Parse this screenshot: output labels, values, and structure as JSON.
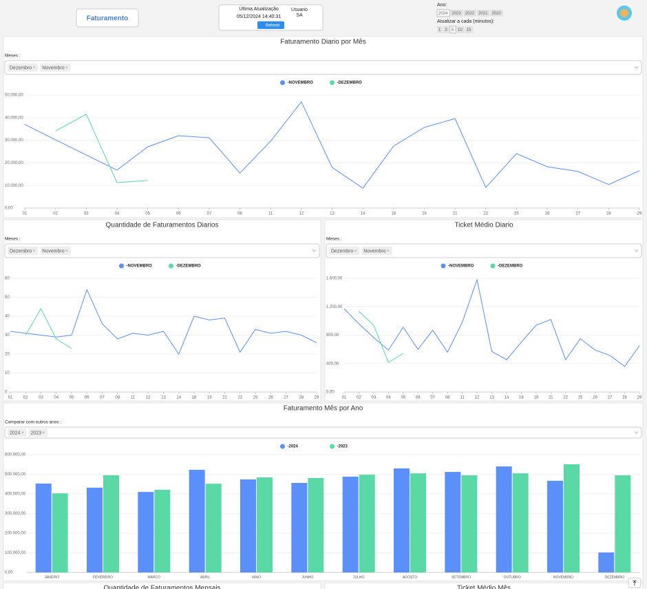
{
  "header": {
    "app_button": "Faturamento",
    "last_update_label": "Última Atualização",
    "last_update": "05/12/2024 14:40:31",
    "user_label": "Usuario",
    "user": "SA",
    "refresh": "Refresh",
    "year_label": "Ano:",
    "years": [
      "2024",
      "2023",
      "2022",
      "2021",
      "2020"
    ],
    "refresh_label": "Atualizar a cada (minutos):",
    "refresh_options": [
      "1",
      "3",
      "5",
      "10",
      "15"
    ]
  },
  "chart_data": [
    {
      "type": "line",
      "title": "Faturamento Diario por Mês",
      "filter_label": "Meses :",
      "filter_tags": [
        "Dezembro",
        "Novembro"
      ],
      "categories": [
        "01",
        "02",
        "03",
        "04",
        "05",
        "06",
        "07",
        "08",
        "11",
        "12",
        "13",
        "14",
        "18",
        "19",
        "21",
        "22",
        "25",
        "26",
        "27",
        "28",
        "29"
      ],
      "series": [
        {
          "name": "-NOVEMBRO",
          "color": "#5b8ff9",
          "values": [
            37000,
            30200,
            23500,
            16800,
            27100,
            32000,
            31100,
            15500,
            29600,
            47000,
            18000,
            8800,
            27400,
            35700,
            39600,
            9100,
            24100,
            18300,
            16200,
            10400,
            16500
          ]
        },
        {
          "name": "-DEZEMBRO",
          "color": "#5ad8a6",
          "values": [
            null,
            34100,
            41500,
            11300,
            12200,
            null,
            null,
            null,
            null,
            null,
            null,
            null,
            null,
            null,
            null,
            null,
            null,
            null,
            null,
            null,
            null
          ]
        }
      ],
      "ylim": [
        0,
        50000
      ],
      "yticks": [
        {
          "value": 0,
          "label": "0,00"
        },
        {
          "value": 10000,
          "label": "10.000,00"
        },
        {
          "value": 20000,
          "label": "20.000,00"
        },
        {
          "value": 30000,
          "label": "30.000,00"
        },
        {
          "value": 40000,
          "label": "40.000,00"
        },
        {
          "value": 50000,
          "label": "50.000,00"
        }
      ],
      "grid": true
    },
    {
      "type": "line",
      "title": "Quantidade de Faturamentos Diarios",
      "filter_label": "Meses :",
      "filter_tags": [
        "Dezembro",
        "Novembro"
      ],
      "categories": [
        "01",
        "02",
        "03",
        "04",
        "05",
        "06",
        "07",
        "08",
        "11",
        "12",
        "13",
        "14",
        "18",
        "19",
        "21",
        "22",
        "25",
        "26",
        "27",
        "28",
        "29"
      ],
      "series": [
        {
          "name": "-NOVEMBRO",
          "color": "#5b8ff9",
          "values": [
            32,
            31,
            30,
            29,
            30,
            54,
            36,
            28,
            31,
            30,
            32,
            20,
            40,
            38,
            39,
            21,
            33,
            31,
            32,
            30,
            26
          ]
        },
        {
          "name": "-DEZEMBRO",
          "color": "#5ad8a6",
          "values": [
            null,
            30,
            44,
            28,
            23,
            null,
            null,
            null,
            null,
            null,
            null,
            null,
            null,
            null,
            null,
            null,
            null,
            null,
            null,
            null,
            null
          ]
        }
      ],
      "ylim": [
        0,
        60
      ],
      "yticks": [
        0,
        10,
        20,
        30,
        40,
        50,
        60
      ],
      "grid": true
    },
    {
      "type": "line",
      "title": "Ticket Médio Diario",
      "filter_label": "Meses :",
      "filter_tags": [
        "Dezembro",
        "Novembro"
      ],
      "categories": [
        "01",
        "02",
        "03",
        "04",
        "05",
        "06",
        "07",
        "08",
        "11",
        "12",
        "13",
        "14",
        "18",
        "19",
        "21",
        "22",
        "25",
        "26",
        "27",
        "28",
        "29"
      ],
      "series": [
        {
          "name": "-NOVEMBRO",
          "color": "#5b8ff9",
          "values": [
            1170,
            960,
            766,
            590,
            910,
            600,
            870,
            560,
            980,
            1580,
            570,
            455,
            700,
            940,
            1020,
            455,
            750,
            590,
            515,
            360,
            650
          ]
        },
        {
          "name": "-DEZEMBRO",
          "color": "#5ad8a6",
          "values": [
            null,
            1135,
            940,
            417,
            543,
            null,
            null,
            null,
            null,
            null,
            null,
            null,
            null,
            null,
            null,
            null,
            null,
            null,
            null,
            null,
            null
          ]
        }
      ],
      "ylim": [
        0,
        1600
      ],
      "yticks": [
        {
          "value": 0,
          "label": "0,00"
        },
        {
          "value": 400,
          "label": "400,00"
        },
        {
          "value": 800,
          "label": "800,00"
        },
        {
          "value": 1200,
          "label": "1.200,00"
        },
        {
          "value": 1600,
          "label": "1.600,00"
        }
      ],
      "grid": true
    },
    {
      "type": "bar",
      "title": "Faturamento Mês por Ano",
      "filter_label": "Comparar com outros anos :",
      "filter_tags": [
        "2024",
        "2023"
      ],
      "categories": [
        "JANEIRO",
        "FEVEREIRO",
        "MARCO",
        "ABRIL",
        "MAIO",
        "JUNHO",
        "JULHO",
        "AGOSTO",
        "SETEMBRO",
        "OUTUBRO",
        "NOVEMBRO",
        "DEZEMBRO"
      ],
      "series": [
        {
          "name": "-2024",
          "color": "#5b8ff9",
          "values": [
            453000,
            432000,
            410000,
            523000,
            474000,
            456000,
            488000,
            530000,
            512000,
            540000,
            467000,
            102000
          ]
        },
        {
          "name": "-2023",
          "color": "#5ad8a6",
          "values": [
            403000,
            495000,
            421000,
            452000,
            484000,
            481000,
            498000,
            505000,
            495000,
            505000,
            551000,
            495000
          ]
        }
      ],
      "ylim": [
        0,
        600000
      ],
      "yticks": [
        {
          "value": 0,
          "label": "0,00"
        },
        {
          "value": 100000,
          "label": "100.000,00"
        },
        {
          "value": 200000,
          "label": "200.000,00"
        },
        {
          "value": 300000,
          "label": "300.000,00"
        },
        {
          "value": 400000,
          "label": "400.000,00"
        },
        {
          "value": 500000,
          "label": "500.000,00"
        },
        {
          "value": 600000,
          "label": "600.000,00"
        }
      ],
      "grid": true
    }
  ],
  "footer": {
    "titles": [
      "Quantidade de Faturamentos Mensais",
      "Ticket Médio Mês"
    ]
  }
}
